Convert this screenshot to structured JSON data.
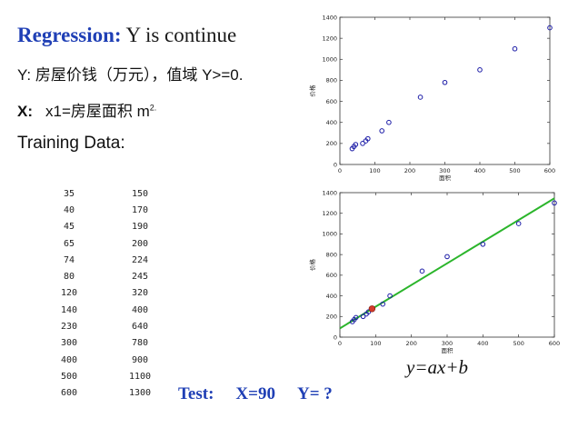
{
  "slide": {
    "title_bold": "Regression:",
    "title_rest": " Y is continue",
    "y_line": "Y: 房屋价钱（万元），值域 Y>=0.",
    "x_label": "X:",
    "x_text": "x1=房屋面积 m",
    "x_sup": "2.",
    "training_label": "Training Data:",
    "test_label": "Test:",
    "test_x": "X=90",
    "test_y": "Y= ?",
    "formula": "y=ax+b"
  },
  "table": {
    "rows": [
      [
        "35",
        "150"
      ],
      [
        "40",
        "170"
      ],
      [
        "45",
        "190"
      ],
      [
        "65",
        "200"
      ],
      [
        "74",
        "224"
      ],
      [
        "80",
        "245"
      ],
      [
        "120",
        "320"
      ],
      [
        "140",
        "400"
      ],
      [
        "230",
        "640"
      ],
      [
        "300",
        "780"
      ],
      [
        "400",
        "900"
      ],
      [
        "500",
        "1100"
      ],
      [
        "600",
        "1300"
      ]
    ]
  },
  "chart_data": [
    {
      "type": "scatter",
      "xlabel": "面积",
      "ylabel": "价格",
      "xlim": [
        0,
        600
      ],
      "ylim": [
        0,
        1400
      ],
      "xticks": [
        0,
        100,
        200,
        300,
        400,
        500,
        600
      ],
      "yticks": [
        0,
        200,
        400,
        600,
        800,
        1000,
        1200,
        1400
      ],
      "grid": false,
      "marker_color": "#1a1aa6",
      "x": [
        35,
        40,
        45,
        65,
        74,
        80,
        120,
        140,
        230,
        300,
        400,
        500,
        600
      ],
      "y": [
        150,
        170,
        190,
        200,
        224,
        245,
        320,
        400,
        640,
        780,
        900,
        1100,
        1300
      ]
    },
    {
      "type": "scatter",
      "xlabel": "面积",
      "ylabel": "价格",
      "xlim": [
        0,
        600
      ],
      "ylim": [
        0,
        1400
      ],
      "xticks": [
        0,
        100,
        200,
        300,
        400,
        500,
        600
      ],
      "yticks": [
        0,
        200,
        400,
        600,
        800,
        1000,
        1200,
        1400
      ],
      "grid": false,
      "marker_color": "#1a1aa6",
      "x": [
        35,
        40,
        45,
        65,
        74,
        80,
        120,
        140,
        230,
        300,
        400,
        500,
        600
      ],
      "y": [
        150,
        170,
        190,
        200,
        224,
        245,
        320,
        400,
        640,
        780,
        900,
        1100,
        1300
      ],
      "fit_line": {
        "x": [
          0,
          600
        ],
        "y": [
          85,
          1345
        ],
        "color": "#2bb52b"
      },
      "test_point": {
        "x": 90,
        "y": 275,
        "color": "#d43a2a"
      }
    }
  ]
}
